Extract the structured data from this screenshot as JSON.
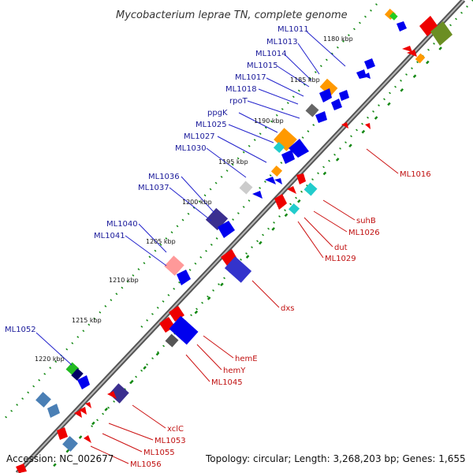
{
  "title": "Mycobacterium leprae TN, complete genome",
  "accession": "Accession: NC_002677",
  "topology": "Topology: circular; Length: 3,268,203 bp; Genes: 1,655",
  "kbp_ticks": [
    "1180 kbp",
    "1185 kbp",
    "1190 kbp",
    "1195 kbp",
    "1200 kbp",
    "1205 kbp",
    "1210 kbp",
    "1215 kbp",
    "1220 kbp"
  ],
  "forward_labels": [
    "ML1011",
    "ML1013",
    "ML1014",
    "ML1015",
    "ML1017",
    "ML1018",
    "rpoT",
    "ppgK",
    "ML1025",
    "ML1027",
    "ML1030",
    "ML1036",
    "ML1037",
    "ML1040",
    "ML1041",
    "ML1052"
  ],
  "reverse_labels": [
    "ML1016",
    "suhB",
    "ML1026",
    "dut",
    "ML1029",
    "dxs",
    "hemE",
    "hemY",
    "ML1045",
    "xclC",
    "ML1053",
    "ML1055",
    "ML1056"
  ],
  "colors": {
    "forward": "#0000ee",
    "reverse": "#ee0000",
    "backbone": "#8a8a8a",
    "orange": "#ff9900",
    "olive": "#6b8e23",
    "cyan": "#22cccc",
    "purple": "#3b2f8f",
    "pink": "#ff9999",
    "green": "#22bb22",
    "steel": "#4a7fb5"
  }
}
